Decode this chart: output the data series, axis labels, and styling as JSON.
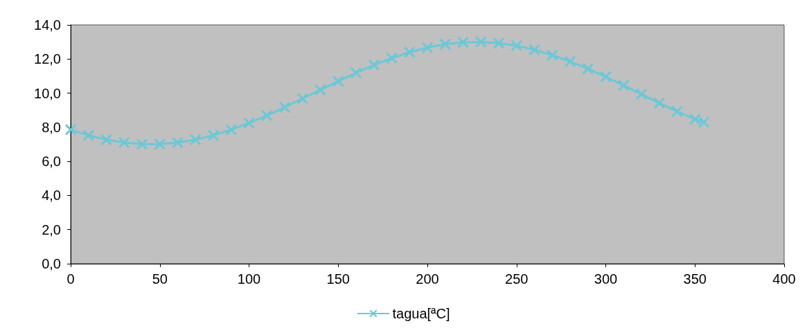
{
  "chart_data": {
    "type": "line",
    "x": [
      0,
      10,
      20,
      30,
      40,
      50,
      60,
      70,
      80,
      90,
      100,
      110,
      120,
      130,
      140,
      150,
      160,
      170,
      180,
      190,
      200,
      210,
      220,
      230,
      240,
      250,
      260,
      270,
      280,
      290,
      300,
      310,
      320,
      330,
      340,
      350,
      355
    ],
    "series": [
      {
        "name": "tagua[ªC]",
        "color": "#6bc8d6",
        "values": [
          7.86,
          7.53,
          7.27,
          7.1,
          7.01,
          7.01,
          7.1,
          7.27,
          7.53,
          7.85,
          8.25,
          8.69,
          9.17,
          9.68,
          10.19,
          10.7,
          11.19,
          11.65,
          12.05,
          12.4,
          12.67,
          12.87,
          12.98,
          13.0,
          12.93,
          12.78,
          12.54,
          12.23,
          11.86,
          11.43,
          10.96,
          10.46,
          9.94,
          9.42,
          8.93,
          8.47,
          8.3
        ]
      }
    ],
    "xlim": [
      0,
      400
    ],
    "xticks": [
      0,
      50,
      100,
      150,
      200,
      250,
      300,
      350,
      400
    ],
    "ylim": [
      0,
      14
    ],
    "yticks": [
      {
        "value": 0,
        "label": "0,0"
      },
      {
        "value": 2,
        "label": "2,0"
      },
      {
        "value": 4,
        "label": "4,0"
      },
      {
        "value": 6,
        "label": "6,0"
      },
      {
        "value": 8,
        "label": "8,0"
      },
      {
        "value": 10,
        "label": "10,0"
      },
      {
        "value": 12,
        "label": "12,0"
      },
      {
        "value": 14,
        "label": "14,0"
      }
    ],
    "grid": false,
    "legend": "bottom",
    "marker": "cross",
    "line_style": "solid"
  }
}
